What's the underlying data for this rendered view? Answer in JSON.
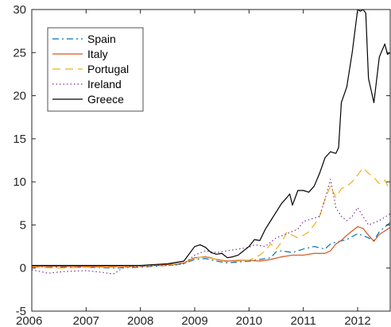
{
  "chart_data": {
    "type": "line",
    "title": "",
    "xlabel": "",
    "ylabel": "",
    "xlim": [
      2006,
      2012.6
    ],
    "ylim": [
      -5,
      30
    ],
    "grid": false,
    "legend_position": "top-left",
    "xticks": [
      2006,
      2007,
      2008,
      2009,
      2010,
      2011,
      2012
    ],
    "yticks": [
      -5,
      0,
      5,
      10,
      15,
      20,
      25,
      30
    ],
    "series": [
      {
        "name": "Spain",
        "color": "#0072BD",
        "dash": "dashdot",
        "x": [
          2006.0,
          2006.5,
          2007.0,
          2007.5,
          2008.0,
          2008.5,
          2008.8,
          2009.0,
          2009.2,
          2009.4,
          2009.6,
          2009.8,
          2010.0,
          2010.2,
          2010.4,
          2010.5,
          2010.6,
          2010.8,
          2011.0,
          2011.2,
          2011.4,
          2011.5,
          2011.6,
          2011.8,
          2012.0,
          2012.2,
          2012.3,
          2012.4,
          2012.6
        ],
        "y": [
          0.2,
          0.1,
          0.1,
          0.0,
          0.1,
          0.3,
          0.5,
          1.0,
          1.1,
          0.8,
          0.6,
          0.7,
          0.8,
          1.0,
          1.2,
          1.9,
          2.0,
          1.8,
          2.2,
          2.5,
          2.2,
          2.8,
          3.0,
          3.3,
          4.0,
          3.5,
          3.2,
          4.2,
          5.3
        ]
      },
      {
        "name": "Italy",
        "color": "#D95319",
        "dash": "solid",
        "x": [
          2006.0,
          2006.5,
          2007.0,
          2007.5,
          2008.0,
          2008.5,
          2008.8,
          2009.0,
          2009.2,
          2009.4,
          2009.6,
          2009.8,
          2010.0,
          2010.2,
          2010.4,
          2010.6,
          2010.8,
          2011.0,
          2011.2,
          2011.4,
          2011.5,
          2011.6,
          2011.7,
          2011.8,
          2011.9,
          2012.0,
          2012.1,
          2012.2,
          2012.3,
          2012.4,
          2012.6
        ],
        "y": [
          0.2,
          0.2,
          0.2,
          0.2,
          0.2,
          0.4,
          0.6,
          1.2,
          1.3,
          1.0,
          0.8,
          0.9,
          0.9,
          0.8,
          1.0,
          1.3,
          1.5,
          1.5,
          1.7,
          1.7,
          2.0,
          2.8,
          3.2,
          3.8,
          4.3,
          4.8,
          4.6,
          3.8,
          3.1,
          3.9,
          4.7
        ]
      },
      {
        "name": "Portugal",
        "color": "#EDB120",
        "dash": "dashed",
        "x": [
          2006.0,
          2006.5,
          2007.0,
          2007.5,
          2008.0,
          2008.5,
          2008.8,
          2009.0,
          2009.2,
          2009.4,
          2009.6,
          2009.8,
          2010.0,
          2010.2,
          2010.3,
          2010.4,
          2010.5,
          2010.6,
          2010.7,
          2010.8,
          2010.9,
          2011.0,
          2011.1,
          2011.2,
          2011.3,
          2011.4,
          2011.5,
          2011.6,
          2011.7,
          2011.8,
          2011.9,
          2012.0,
          2012.1,
          2012.2,
          2012.3,
          2012.4,
          2012.5,
          2012.6
        ],
        "y": [
          0.1,
          0.0,
          0.1,
          0.1,
          0.2,
          0.3,
          0.6,
          1.1,
          1.4,
          1.0,
          0.7,
          0.8,
          0.9,
          1.5,
          2.0,
          2.8,
          2.2,
          3.0,
          4.2,
          3.8,
          3.5,
          3.8,
          4.2,
          5.0,
          6.0,
          8.0,
          9.5,
          8.2,
          9.2,
          9.5,
          10.0,
          10.8,
          11.6,
          11.0,
          10.5,
          9.8,
          10.2,
          9.0
        ]
      },
      {
        "name": "Ireland",
        "color": "#7E2F8E",
        "dash": "dotted",
        "x": [
          2006.0,
          2006.3,
          2006.6,
          2007.0,
          2007.3,
          2007.5,
          2007.7,
          2008.0,
          2008.3,
          2008.6,
          2008.8,
          2009.0,
          2009.2,
          2009.4,
          2009.6,
          2009.8,
          2010.0,
          2010.1,
          2010.3,
          2010.5,
          2010.7,
          2010.9,
          2011.0,
          2011.2,
          2011.3,
          2011.4,
          2011.5,
          2011.6,
          2011.7,
          2011.8,
          2011.9,
          2012.0,
          2012.2,
          2012.4,
          2012.6
        ],
        "y": [
          -0.2,
          -0.6,
          -0.4,
          -0.3,
          -0.5,
          -0.7,
          0.1,
          0.2,
          0.3,
          0.3,
          0.5,
          1.5,
          2.0,
          1.8,
          2.0,
          2.2,
          2.4,
          2.7,
          2.5,
          3.5,
          4.0,
          4.5,
          5.4,
          5.8,
          6.0,
          8.0,
          10.3,
          7.0,
          6.0,
          5.5,
          6.0,
          7.0,
          5.0,
          5.5,
          6.3
        ]
      },
      {
        "name": "Greece",
        "color": "#000000",
        "dash": "solid",
        "x": [
          2006.0,
          2006.5,
          2007.0,
          2007.5,
          2008.0,
          2008.5,
          2008.8,
          2009.0,
          2009.1,
          2009.2,
          2009.3,
          2009.4,
          2009.5,
          2009.6,
          2009.7,
          2009.8,
          2009.9,
          2010.0,
          2010.1,
          2010.2,
          2010.3,
          2010.4,
          2010.5,
          2010.6,
          2010.7,
          2010.75,
          2010.8,
          2010.9,
          2011.0,
          2011.1,
          2011.2,
          2011.3,
          2011.4,
          2011.5,
          2011.6,
          2011.65,
          2011.7,
          2011.8,
          2011.9,
          2012.0,
          2012.05,
          2012.1,
          2012.15,
          2012.2,
          2012.3,
          2012.4,
          2012.5,
          2012.55,
          2012.6
        ],
        "y": [
          0.3,
          0.3,
          0.3,
          0.3,
          0.3,
          0.5,
          0.8,
          2.5,
          2.7,
          2.4,
          1.8,
          1.6,
          1.7,
          1.2,
          1.3,
          1.5,
          2.0,
          2.5,
          3.3,
          3.2,
          4.5,
          5.5,
          6.5,
          7.5,
          8.2,
          8.6,
          7.3,
          9.0,
          9.0,
          8.8,
          9.5,
          11.0,
          12.8,
          13.5,
          13.3,
          14.0,
          19.2,
          21.0,
          25.0,
          30.0,
          29.8,
          30.0,
          29.6,
          22.0,
          19.2,
          24.5,
          26.0,
          24.8,
          25.0
        ]
      }
    ]
  }
}
